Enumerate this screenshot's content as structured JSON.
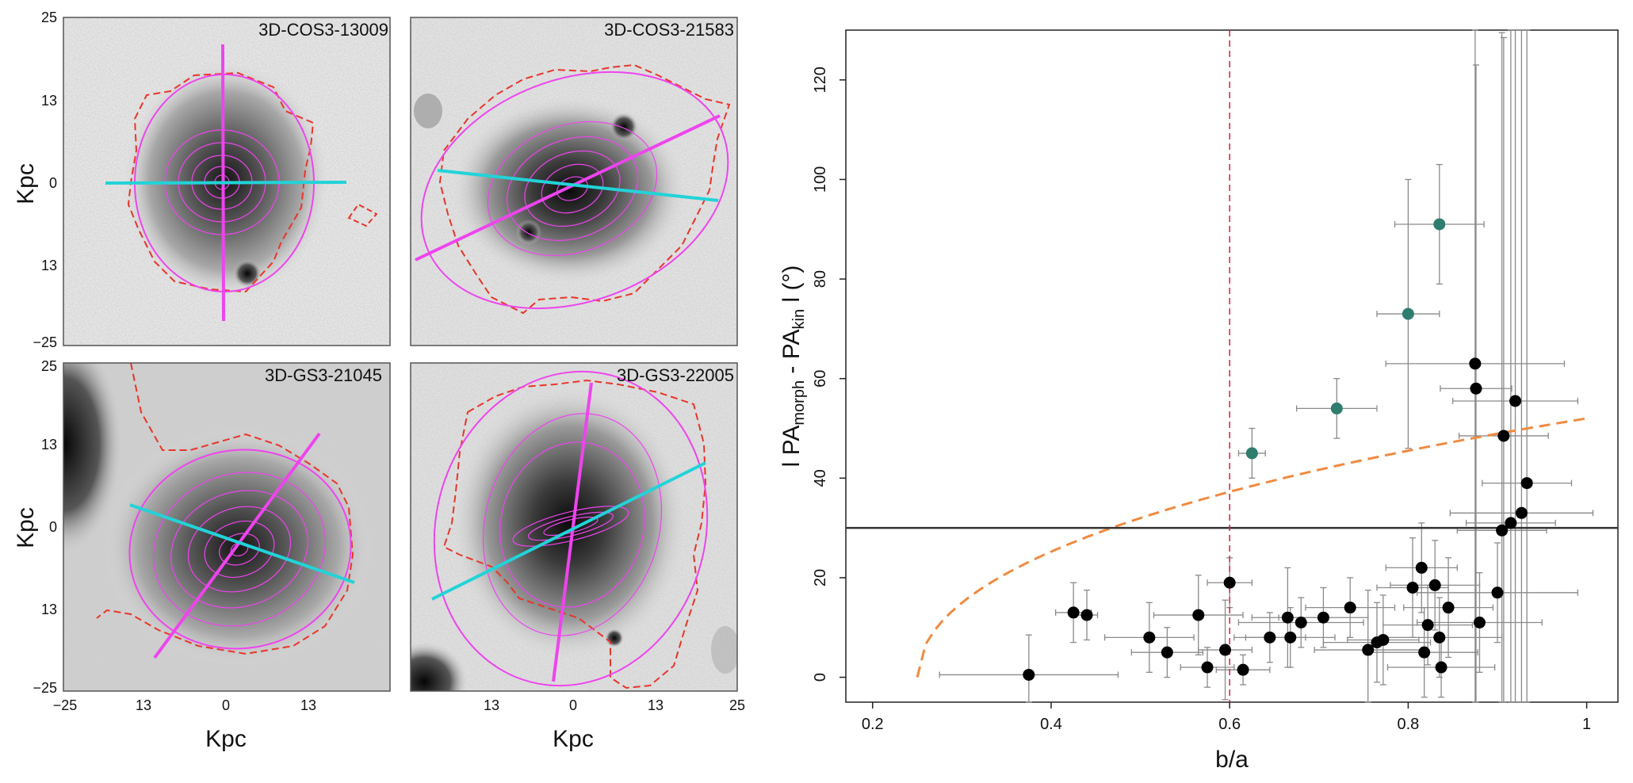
{
  "panels": [
    {
      "id": "3D-COS3-13009"
    },
    {
      "id": "3D-COS3-21583"
    },
    {
      "id": "3D-GS3-21045"
    },
    {
      "id": "3D-GS3-22005"
    }
  ],
  "image_axes": {
    "xlabel": "Kpc",
    "ylabel": "Kpc",
    "y_ticks_top": [
      "25",
      "13",
      "0",
      "13",
      "−25"
    ],
    "y_ticks_bottom": [
      "25",
      "13",
      "0",
      "13",
      "−25"
    ],
    "x_ticks_left": [
      "−25",
      "13",
      "0",
      "13"
    ],
    "x_ticks_right": [
      "13",
      "0",
      "13",
      "25"
    ]
  },
  "colors": {
    "ellipse": "#ee44ee",
    "major_axis": "#ee44ee",
    "kinematic_axis": "#22d3d8",
    "contour": "#e8352a",
    "points_main": "#000000",
    "points_misaligned": "#2e7d6e",
    "threshold_line": "#d42040",
    "model_curve": "#f08a40"
  },
  "chart_data": {
    "type": "scatter",
    "title": "",
    "xlabel": "b/a",
    "ylabel_parts": [
      "l PA",
      "morph",
      " - PA",
      "kin",
      " l  (°)"
    ],
    "xlim": [
      0.17,
      1.035
    ],
    "ylim": [
      -5,
      130
    ],
    "x_ticks": [
      "0.2",
      "0.4",
      "0.6",
      "0.8",
      "1"
    ],
    "y_ticks": [
      "0",
      "20",
      "40",
      "60",
      "80",
      "100",
      "120"
    ],
    "hline": 30,
    "vline": 0.6,
    "curve_type": "dashed",
    "highlighted": [
      {
        "x": 0.625,
        "y": 45,
        "xerr": 0.015,
        "yerr": 5
      },
      {
        "x": 0.72,
        "y": 54,
        "xerr": 0.045,
        "yerr": 6
      },
      {
        "x": 0.8,
        "y": 73,
        "xerr": 0.035,
        "yerr": 27
      },
      {
        "x": 0.835,
        "y": 91,
        "xerr": 0.05,
        "yerr": 12
      }
    ],
    "points": [
      {
        "x": 0.375,
        "y": 0.5,
        "xerr": 0.1,
        "yerr": 8
      },
      {
        "x": 0.425,
        "y": 13,
        "xerr": 0.02,
        "yerr": 6
      },
      {
        "x": 0.44,
        "y": 12.5,
        "xerr": 0.012,
        "yerr": 5
      },
      {
        "x": 0.51,
        "y": 8,
        "xerr": 0.05,
        "yerr": 7
      },
      {
        "x": 0.53,
        "y": 5,
        "xerr": 0.04,
        "yerr": 5
      },
      {
        "x": 0.565,
        "y": 12.5,
        "xerr": 0.05,
        "yerr": 8
      },
      {
        "x": 0.575,
        "y": 2,
        "xerr": 0.03,
        "yerr": 4
      },
      {
        "x": 0.595,
        "y": 5.5,
        "xerr": 0.03,
        "yerr": 10
      },
      {
        "x": 0.6,
        "y": 19,
        "xerr": 0.025,
        "yerr": 5
      },
      {
        "x": 0.615,
        "y": 1.5,
        "xerr": 0.03,
        "yerr": 3
      },
      {
        "x": 0.645,
        "y": 8,
        "xerr": 0.04,
        "yerr": 5
      },
      {
        "x": 0.665,
        "y": 12,
        "xerr": 0.04,
        "yerr": 10
      },
      {
        "x": 0.668,
        "y": 8,
        "xerr": 0.05,
        "yerr": 6
      },
      {
        "x": 0.68,
        "y": 11,
        "xerr": 0.07,
        "yerr": 5
      },
      {
        "x": 0.705,
        "y": 12,
        "xerr": 0.05,
        "yerr": 6
      },
      {
        "x": 0.735,
        "y": 14,
        "xerr": 0.05,
        "yerr": 6
      },
      {
        "x": 0.755,
        "y": 5.5,
        "xerr": 0.06,
        "yerr": 12
      },
      {
        "x": 0.765,
        "y": 7,
        "xerr": 0.06,
        "yerr": 8
      },
      {
        "x": 0.772,
        "y": 7.5,
        "xerr": 0.04,
        "yerr": 9
      },
      {
        "x": 0.805,
        "y": 18,
        "xerr": 0.04,
        "yerr": 10
      },
      {
        "x": 0.815,
        "y": 22,
        "xerr": 0.04,
        "yerr": 9
      },
      {
        "x": 0.818,
        "y": 5,
        "xerr": 0.06,
        "yerr": 9
      },
      {
        "x": 0.822,
        "y": 10.5,
        "xerr": 0.05,
        "yerr": 8
      },
      {
        "x": 0.83,
        "y": 18.5,
        "xerr": 0.05,
        "yerr": 9
      },
      {
        "x": 0.835,
        "y": 8,
        "xerr": 0.07,
        "yerr": 8
      },
      {
        "x": 0.837,
        "y": 2,
        "xerr": 0.06,
        "yerr": 6
      },
      {
        "x": 0.845,
        "y": 14,
        "xerr": 0.05,
        "yerr": 10
      },
      {
        "x": 0.875,
        "y": 63,
        "xerr": 0.1,
        "yerr": 70
      },
      {
        "x": 0.876,
        "y": 58,
        "xerr": 0.04,
        "yerr": 65
      },
      {
        "x": 0.88,
        "y": 11,
        "xerr": 0.07,
        "yerr": 10
      },
      {
        "x": 0.9,
        "y": 17,
        "xerr": 0.09,
        "yerr": 10
      },
      {
        "x": 0.905,
        "y": 29.5,
        "xerr": 0.05,
        "yerr": 100
      },
      {
        "x": 0.907,
        "y": 48.5,
        "xerr": 0.05,
        "yerr": 80
      },
      {
        "x": 0.915,
        "y": 31,
        "xerr": 0.05,
        "yerr": 100
      },
      {
        "x": 0.92,
        "y": 55.5,
        "xerr": 0.07,
        "yerr": 80
      },
      {
        "x": 0.927,
        "y": 33,
        "xerr": 0.08,
        "yerr": 100
      },
      {
        "x": 0.933,
        "y": 39,
        "xerr": 0.05,
        "yerr": 100
      }
    ]
  }
}
